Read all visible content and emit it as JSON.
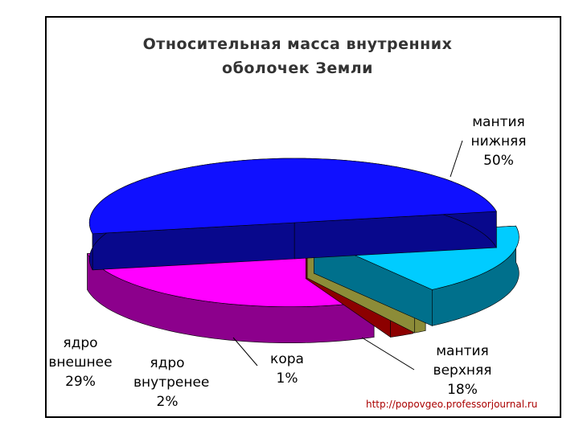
{
  "chart_data": {
    "type": "pie",
    "title": "Относительная масса внутренних оболочек Земли",
    "categories": [
      "мантия нижняя",
      "мантия верхняя",
      "кора",
      "ядро внутренее",
      "ядро внешнее"
    ],
    "values": [
      50,
      18,
      1,
      2,
      29
    ],
    "value_labels": [
      "50%",
      "18%",
      "1%",
      "2%",
      "29%"
    ],
    "colors": [
      "#1010ff",
      "#00ccff",
      "#ffff66",
      "#ff0000",
      "#ff00ff"
    ],
    "source": "http://popovgeo.professorjournal.ru"
  }
}
